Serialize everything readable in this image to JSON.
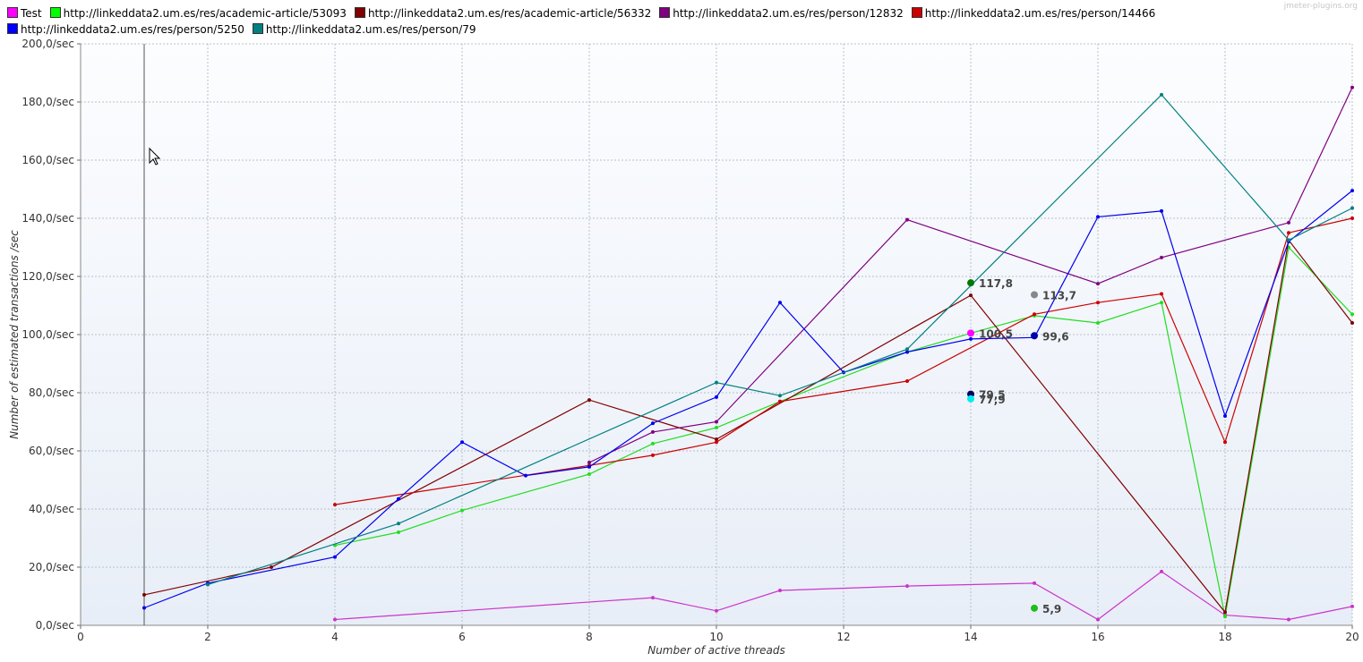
{
  "watermark": "jmeter-plugins.org",
  "chart_data": {
    "type": "line",
    "xlabel": "Number of active threads",
    "ylabel": "Number of estimated transactions /sec",
    "xlim": [
      0,
      20
    ],
    "ylim": [
      0,
      200
    ],
    "x_ticks": [
      0,
      2,
      4,
      6,
      8,
      10,
      12,
      14,
      16,
      18,
      20
    ],
    "y_ticks": [
      "0,0/sec",
      "20,0/sec",
      "40,0/sec",
      "60,0/sec",
      "80,0/sec",
      "100,0/sec",
      "120,0/sec",
      "140,0/sec",
      "160,0/sec",
      "180,0/sec",
      "200,0/sec"
    ],
    "grid": true,
    "legend_position": "top",
    "cursor_x": 1,
    "series": [
      {
        "name": "Test",
        "color": "#cc33cc",
        "legend_color": "#ff00ff",
        "points": [
          [
            4,
            2.0
          ],
          [
            9,
            9.5
          ],
          [
            10,
            5.0
          ],
          [
            11,
            12.0
          ],
          [
            13,
            13.5
          ],
          [
            15,
            14.5
          ],
          [
            16,
            2.0
          ],
          [
            17,
            18.5
          ],
          [
            18,
            3.5
          ],
          [
            19,
            2.0
          ],
          [
            20,
            6.5
          ]
        ]
      },
      {
        "name": "http://linkeddata2.um.es/res/academic-article/53093",
        "color": "#22dd22",
        "legend_color": "#00ff00",
        "points": [
          [
            4,
            27.5
          ],
          [
            5,
            32.0
          ],
          [
            6,
            39.5
          ],
          [
            8,
            52.0
          ],
          [
            9,
            62.5
          ],
          [
            10,
            68.0
          ],
          [
            11,
            77.0
          ],
          [
            13,
            94.0
          ],
          [
            14,
            100.5
          ],
          [
            15,
            106.5
          ],
          [
            16,
            104.0
          ],
          [
            17,
            111.0
          ],
          [
            18,
            3.0
          ],
          [
            19,
            130.0
          ],
          [
            20,
            107.0
          ]
        ]
      },
      {
        "name": "http://linkeddata2.um.es/res/academic-article/56332",
        "color": "#800000",
        "legend_color": "#800000",
        "points": [
          [
            1,
            10.5
          ],
          [
            3,
            20.0
          ],
          [
            8,
            77.5
          ],
          [
            10,
            64.0
          ],
          [
            14,
            113.5
          ],
          [
            18,
            4.5
          ],
          [
            19,
            132.5
          ],
          [
            20,
            104.0
          ]
        ]
      },
      {
        "name": "http://linkeddata2.um.es/res/person/12832",
        "color": "#800080",
        "legend_color": "#800080",
        "points": [
          [
            8,
            56.0
          ],
          [
            9,
            66.5
          ],
          [
            10,
            70.0
          ],
          [
            13,
            139.5
          ],
          [
            16,
            117.5
          ],
          [
            17,
            126.5
          ],
          [
            19,
            138.5
          ],
          [
            20,
            185.0
          ]
        ]
      },
      {
        "name": "http://linkeddata2.um.es/res/person/14466",
        "color": "#cc0000",
        "legend_color": "#cc0000",
        "points": [
          [
            4,
            41.5
          ],
          [
            8,
            55.0
          ],
          [
            9,
            58.5
          ],
          [
            10,
            63.0
          ],
          [
            11,
            77.0
          ],
          [
            13,
            84.0
          ],
          [
            15,
            107.0
          ],
          [
            16,
            111.0
          ],
          [
            17,
            114.0
          ],
          [
            18,
            63.0
          ],
          [
            19,
            135.0
          ],
          [
            20,
            140.0
          ]
        ]
      },
      {
        "name": "http://linkeddata2.um.es/res/person/5250",
        "color": "#0000ee",
        "legend_color": "#0000ff",
        "points": [
          [
            1,
            6.0
          ],
          [
            2,
            14.5
          ],
          [
            4,
            23.5
          ],
          [
            5,
            43.5
          ],
          [
            6,
            63.0
          ],
          [
            7,
            51.5
          ],
          [
            8,
            54.5
          ],
          [
            9,
            69.5
          ],
          [
            10,
            78.5
          ],
          [
            11,
            111.0
          ],
          [
            12,
            87.0
          ],
          [
            13,
            94.0
          ],
          [
            14,
            98.5
          ],
          [
            15,
            99.0
          ],
          [
            16,
            140.5
          ],
          [
            17,
            142.5
          ],
          [
            18,
            72.0
          ],
          [
            19,
            132.0
          ],
          [
            20,
            149.5
          ]
        ]
      },
      {
        "name": "http://linkeddata2.um.es/res/person/79",
        "color": "#008080",
        "legend_color": "#008080",
        "points": [
          [
            2,
            14.0
          ],
          [
            5,
            35.0
          ],
          [
            10,
            83.5
          ],
          [
            11,
            79.0
          ],
          [
            13,
            95.0
          ],
          [
            17,
            182.5
          ],
          [
            19,
            132.5
          ],
          [
            20,
            143.5
          ]
        ]
      }
    ],
    "annotations": [
      {
        "x": 14,
        "y": 117.8,
        "label": "117,8",
        "color": "#007700"
      },
      {
        "x": 15,
        "y": 113.7,
        "label": "113,7",
        "color": "#888888"
      },
      {
        "x": 14,
        "y": 100.5,
        "label": "100,5",
        "color": "#ff00ff"
      },
      {
        "x": 15,
        "y": 99.6,
        "label": "99,6",
        "color": "#0000aa"
      },
      {
        "x": 14,
        "y": 79.5,
        "label": "79,5",
        "color": "#000066"
      },
      {
        "x": 14,
        "y": 77.9,
        "label": "77,9",
        "color": "#00eeee"
      },
      {
        "x": 15,
        "y": 5.9,
        "label": "5,9",
        "color": "#22bb22"
      }
    ]
  }
}
